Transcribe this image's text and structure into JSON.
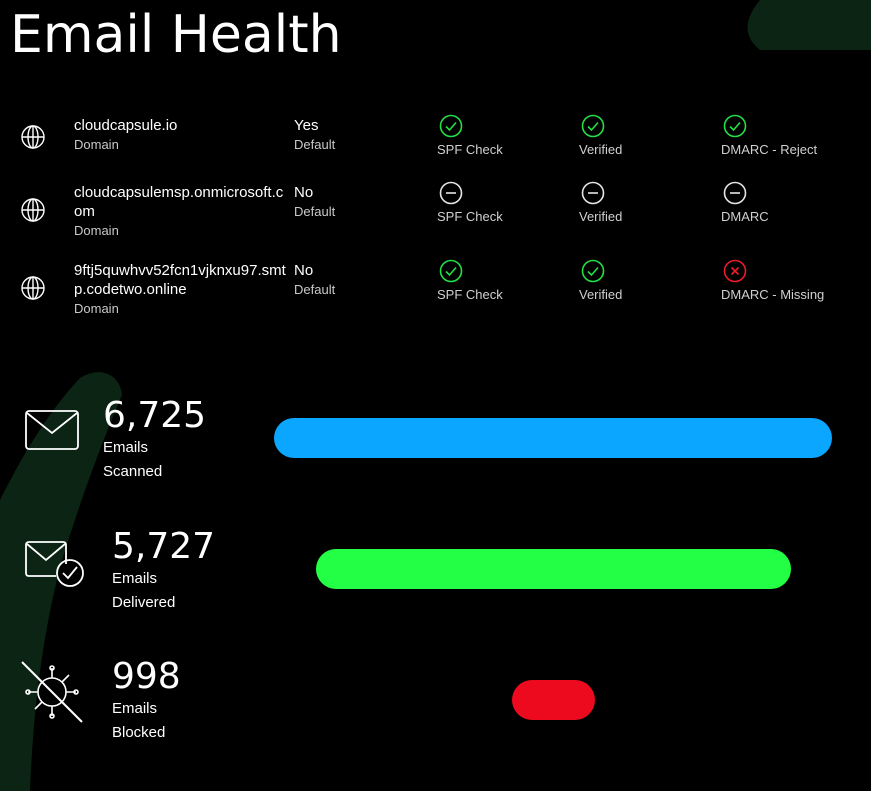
{
  "title": "Email Health",
  "domains": [
    {
      "name": "cloudcapsule.io",
      "type_label": "Domain",
      "default_value": "Yes",
      "default_label": "Default",
      "checks": [
        {
          "label": "SPF Check",
          "status": "pass"
        },
        {
          "label": "Verified",
          "status": "pass"
        },
        {
          "label": "DMARC - Reject",
          "status": "pass"
        }
      ]
    },
    {
      "name": "cloudcapsulemsp.onmicrosoft.com",
      "type_label": "Domain",
      "default_value": "No",
      "default_label": "Default",
      "checks": [
        {
          "label": "SPF Check",
          "status": "none"
        },
        {
          "label": "Verified",
          "status": "none"
        },
        {
          "label": "DMARC",
          "status": "none"
        }
      ]
    },
    {
      "name": "9ftj5quwhvv52fcn1vjknxu97.smtp.codetwo.online",
      "type_label": "Domain",
      "default_value": "No",
      "default_label": "Default",
      "checks": [
        {
          "label": "SPF Check",
          "status": "pass"
        },
        {
          "label": "Verified",
          "status": "pass"
        },
        {
          "label": "DMARC - Missing",
          "status": "fail"
        }
      ]
    }
  ],
  "stats": {
    "scanned": {
      "value": "6,725",
      "line1": "Emails",
      "line2": "Scanned",
      "count": 6725,
      "color": "#0aa6ff",
      "icon": "envelope-icon"
    },
    "delivered": {
      "value": "5,727",
      "line1": "Emails",
      "line2": "Delivered",
      "count": 5727,
      "color": "#22ff44",
      "icon": "envelope-check-icon"
    },
    "blocked": {
      "value": "998",
      "line1": "Emails",
      "line2": "Blocked",
      "count": 998,
      "color": "#ee0a1e",
      "icon": "virus-blocked-icon"
    }
  },
  "colors": {
    "background": "#000000",
    "pass": "#22e045",
    "fail": "#ee1b2b",
    "neutral": "#e6e6e6",
    "decoration": "#0b2414"
  }
}
